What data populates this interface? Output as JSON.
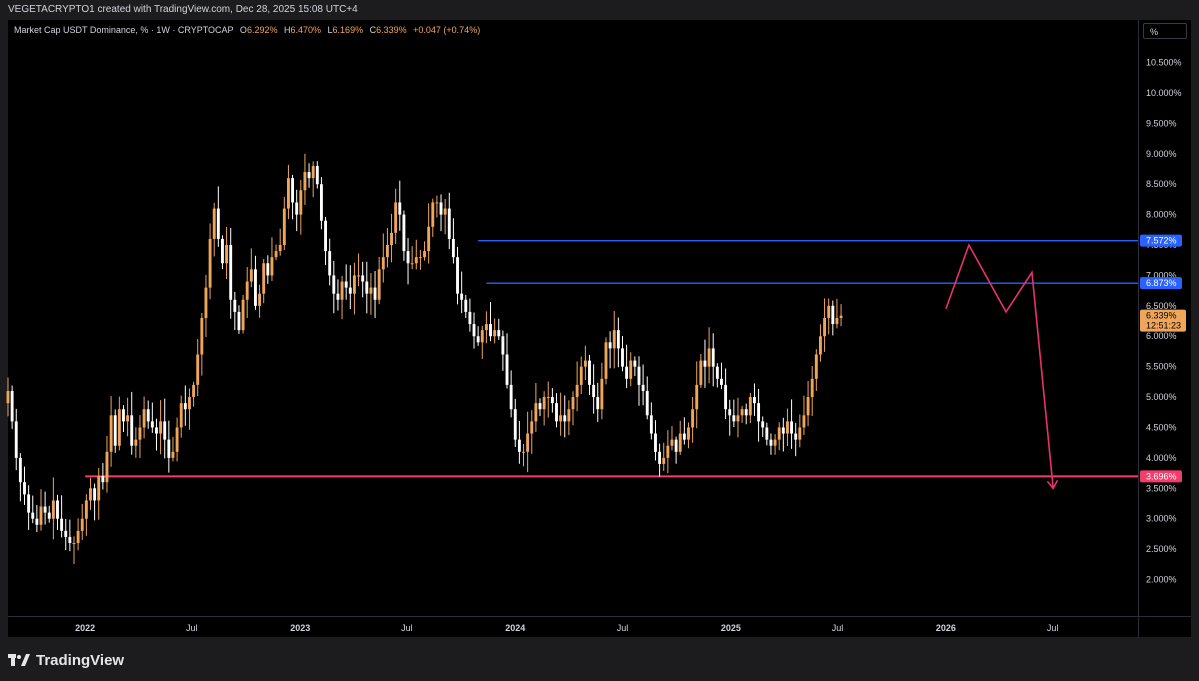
{
  "header": {
    "credit": "VEGETACRYPTO1 created with TradingView.com, Dec 28, 2025 15:08 UTC+4"
  },
  "legend": {
    "symbol": "Market Cap USDT Dominance, % · 1W · CRYPTOCAP",
    "open_label": "O",
    "open_value": "6.292%",
    "high_label": "H",
    "high_value": "6.470%",
    "low_label": "L",
    "low_value": "6.169%",
    "close_label": "C",
    "close_value": "6.339%",
    "change": "+0.047 (+0.74%)"
  },
  "scale_button": "%",
  "footer": {
    "brand": "TradingView"
  },
  "colors": {
    "up": "#f0a65a",
    "down": "#ffffff",
    "blue_line": "#2962ff",
    "red_line": "#f23d6d",
    "projection": "#e8336a",
    "background": "#000000"
  },
  "chart_data": {
    "type": "candlestick",
    "y_axis": {
      "unit": "%",
      "ylim": [
        1.4,
        11.2
      ],
      "ticks": [
        {
          "value": 10.5,
          "label": "10.500%"
        },
        {
          "value": 10.0,
          "label": "10.000%"
        },
        {
          "value": 9.5,
          "label": "9.500%"
        },
        {
          "value": 9.0,
          "label": "9.000%"
        },
        {
          "value": 8.5,
          "label": "8.500%"
        },
        {
          "value": 8.0,
          "label": "8.000%"
        },
        {
          "value": 7.5,
          "label": "7.500%"
        },
        {
          "value": 7.0,
          "label": "7.000%"
        },
        {
          "value": 6.5,
          "label": "6.500%"
        },
        {
          "value": 6.0,
          "label": "6.000%"
        },
        {
          "value": 5.5,
          "label": "5.500%"
        },
        {
          "value": 5.0,
          "label": "5.000%"
        },
        {
          "value": 4.5,
          "label": "4.500%"
        },
        {
          "value": 4.0,
          "label": "4.000%"
        },
        {
          "value": 3.5,
          "label": "3.500%"
        },
        {
          "value": 3.0,
          "label": "3.000%"
        },
        {
          "value": 2.5,
          "label": "2.500%"
        },
        {
          "value": 2.0,
          "label": "2.000%"
        }
      ]
    },
    "x_axis": {
      "start": "2021-08-23",
      "end": "2026-11-23",
      "ticks": [
        {
          "date": "2022-01-01",
          "label": "2022",
          "bold": true
        },
        {
          "date": "2022-07-01",
          "label": "Jul",
          "bold": false
        },
        {
          "date": "2023-01-01",
          "label": "2023",
          "bold": true
        },
        {
          "date": "2023-07-01",
          "label": "Jul",
          "bold": false
        },
        {
          "date": "2024-01-01",
          "label": "2024",
          "bold": true
        },
        {
          "date": "2024-07-01",
          "label": "Jul",
          "bold": false
        },
        {
          "date": "2025-01-01",
          "label": "2025",
          "bold": true
        },
        {
          "date": "2025-07-01",
          "label": "Jul",
          "bold": false
        },
        {
          "date": "2026-01-01",
          "label": "2026",
          "bold": true
        },
        {
          "date": "2026-07-01",
          "label": "Jul",
          "bold": false
        }
      ]
    },
    "series_start": "2021-08-23",
    "close_series": [
      5.1,
      4.6,
      4.0,
      3.6,
      3.4,
      3.1,
      3.0,
      2.9,
      3.2,
      3.1,
      3.0,
      3.3,
      3.0,
      2.8,
      2.7,
      2.6,
      2.6,
      2.8,
      3.0,
      3.3,
      3.5,
      3.3,
      3.7,
      3.6,
      4.1,
      4.7,
      4.2,
      4.8,
      4.6,
      4.7,
      4.2,
      4.3,
      4.5,
      4.8,
      4.6,
      4.5,
      4.4,
      4.6,
      4.3,
      4.0,
      4.1,
      4.5,
      4.9,
      4.8,
      5.0,
      5.2,
      5.7,
      6.3,
      6.8,
      7.6,
      8.1,
      7.6,
      7.2,
      7.5,
      6.6,
      6.4,
      6.1,
      6.6,
      6.9,
      7.1,
      6.5,
      6.7,
      7.2,
      7.0,
      7.3,
      7.4,
      7.5,
      8.1,
      8.6,
      8.2,
      8.0,
      8.4,
      8.7,
      8.6,
      8.8,
      8.5,
      7.9,
      7.4,
      7.0,
      6.7,
      6.6,
      6.9,
      6.8,
      6.7,
      7.0,
      7.0,
      6.9,
      6.7,
      6.8,
      6.6,
      7.1,
      7.3,
      7.5,
      7.7,
      8.2,
      8.0,
      7.4,
      7.2,
      7.2,
      7.3,
      7.3,
      7.4,
      7.8,
      8.2,
      8.2,
      8.0,
      8.1,
      7.6,
      7.3,
      6.7,
      6.6,
      6.4,
      6.2,
      6.0,
      5.9,
      6.1,
      6.2,
      6.0,
      6.1,
      6.0,
      5.7,
      5.2,
      4.8,
      4.3,
      4.1,
      4.1,
      4.4,
      4.6,
      4.9,
      4.8,
      5.0,
      5.0,
      4.9,
      4.6,
      4.7,
      4.6,
      4.8,
      5.0,
      5.2,
      5.5,
      5.6,
      5.2,
      5.0,
      4.8,
      5.3,
      5.9,
      5.8,
      6.1,
      5.8,
      5.5,
      5.3,
      5.6,
      5.5,
      5.2,
      5.1,
      4.7,
      4.4,
      4.1,
      3.9,
      4.0,
      4.2,
      4.3,
      4.1,
      4.4,
      4.3,
      4.5,
      4.8,
      5.2,
      5.6,
      5.5,
      5.8,
      5.5,
      5.3,
      5.2,
      4.8,
      4.7,
      4.6,
      4.7,
      4.8,
      4.7,
      5.0,
      4.9,
      4.6,
      4.5,
      4.3,
      4.2,
      4.3,
      4.5,
      4.4,
      4.6,
      4.4,
      4.3,
      4.5,
      4.7,
      5.0,
      5.3,
      5.7,
      6.0,
      6.3,
      6.5,
      6.2,
      6.3,
      6.339
    ],
    "levels": [
      {
        "value": 7.572,
        "label": "7.572%",
        "start": "2023-10-30",
        "color": "blue"
      },
      {
        "value": 6.873,
        "label": "6.873%",
        "start": "2023-11-13",
        "color": "blue"
      },
      {
        "value": 3.696,
        "label": "3.696%",
        "start": "2022-01-01",
        "color": "red"
      }
    ],
    "last_price": {
      "value": 6.339,
      "label": "6.339%",
      "countdown": "12:51:23"
    },
    "projection_path": [
      {
        "date": "2026-01-01",
        "value": 6.45
      },
      {
        "date": "2026-02-09",
        "value": 7.5
      },
      {
        "date": "2026-04-13",
        "value": 6.4
      },
      {
        "date": "2026-05-27",
        "value": 7.05
      },
      {
        "date": "2026-07-02",
        "value": 3.5
      }
    ]
  }
}
